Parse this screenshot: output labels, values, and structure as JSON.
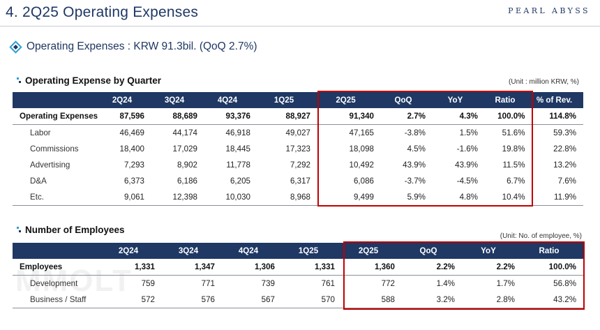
{
  "page": {
    "title": "4. 2Q25 Operating Expenses",
    "logo": "PEARL ABYSS",
    "subtitle": "Operating Expenses : KRW  91.3bil. (QoQ 2.7%)",
    "watermark": "MMOLT"
  },
  "opex_table": {
    "title": "Operating Expense by Quarter",
    "unit": "(Unit : million KRW, %)",
    "headers": [
      "",
      "2Q24",
      "3Q24",
      "4Q24",
      "1Q25",
      "2Q25",
      "QoQ",
      "YoY",
      "Ratio",
      "% of Rev."
    ],
    "rows": [
      [
        "Operating Expenses",
        "87,596",
        "88,689",
        "93,376",
        "88,927",
        "91,340",
        "2.7%",
        "4.3%",
        "100.0%",
        "114.8%"
      ],
      [
        "Labor",
        "46,469",
        "44,174",
        "46,918",
        "49,027",
        "47,165",
        "-3.8%",
        "1.5%",
        "51.6%",
        "59.3%"
      ],
      [
        "Commissions",
        "18,400",
        "17,029",
        "18,445",
        "17,323",
        "18,098",
        "4.5%",
        "-1.6%",
        "19.8%",
        "22.8%"
      ],
      [
        "Advertising",
        "7,293",
        "8,902",
        "11,778",
        "7,292",
        "10,492",
        "43.9%",
        "43.9%",
        "11.5%",
        "13.2%"
      ],
      [
        "D&A",
        "6,373",
        "6,186",
        "6,205",
        "6,317",
        "6,086",
        "-3.7%",
        "-4.5%",
        "6.7%",
        "7.6%"
      ],
      [
        "Etc.",
        "9,061",
        "12,398",
        "10,030",
        "8,968",
        "9,499",
        "5.9%",
        "4.8%",
        "10.4%",
        "11.9%"
      ]
    ]
  },
  "emp_table": {
    "title": "Number of Employees",
    "unit": "(Unit: No. of employee, %)",
    "headers": [
      "",
      "2Q24",
      "3Q24",
      "4Q24",
      "1Q25",
      "2Q25",
      "QoQ",
      "YoY",
      "Ratio"
    ],
    "rows": [
      [
        "Employees",
        "1,331",
        "1,347",
        "1,306",
        "1,331",
        "1,360",
        "2.2%",
        "2.2%",
        "100.0%"
      ],
      [
        "Development",
        "759",
        "771",
        "739",
        "761",
        "772",
        "1.4%",
        "1.7%",
        "56.8%"
      ],
      [
        "Business / Staff",
        "572",
        "576",
        "567",
        "570",
        "588",
        "3.2%",
        "2.8%",
        "43.2%"
      ]
    ]
  },
  "colors": {
    "header_bg": "#1f3864",
    "highlight_border": "#c00000",
    "accent": "#2e9fd6"
  }
}
